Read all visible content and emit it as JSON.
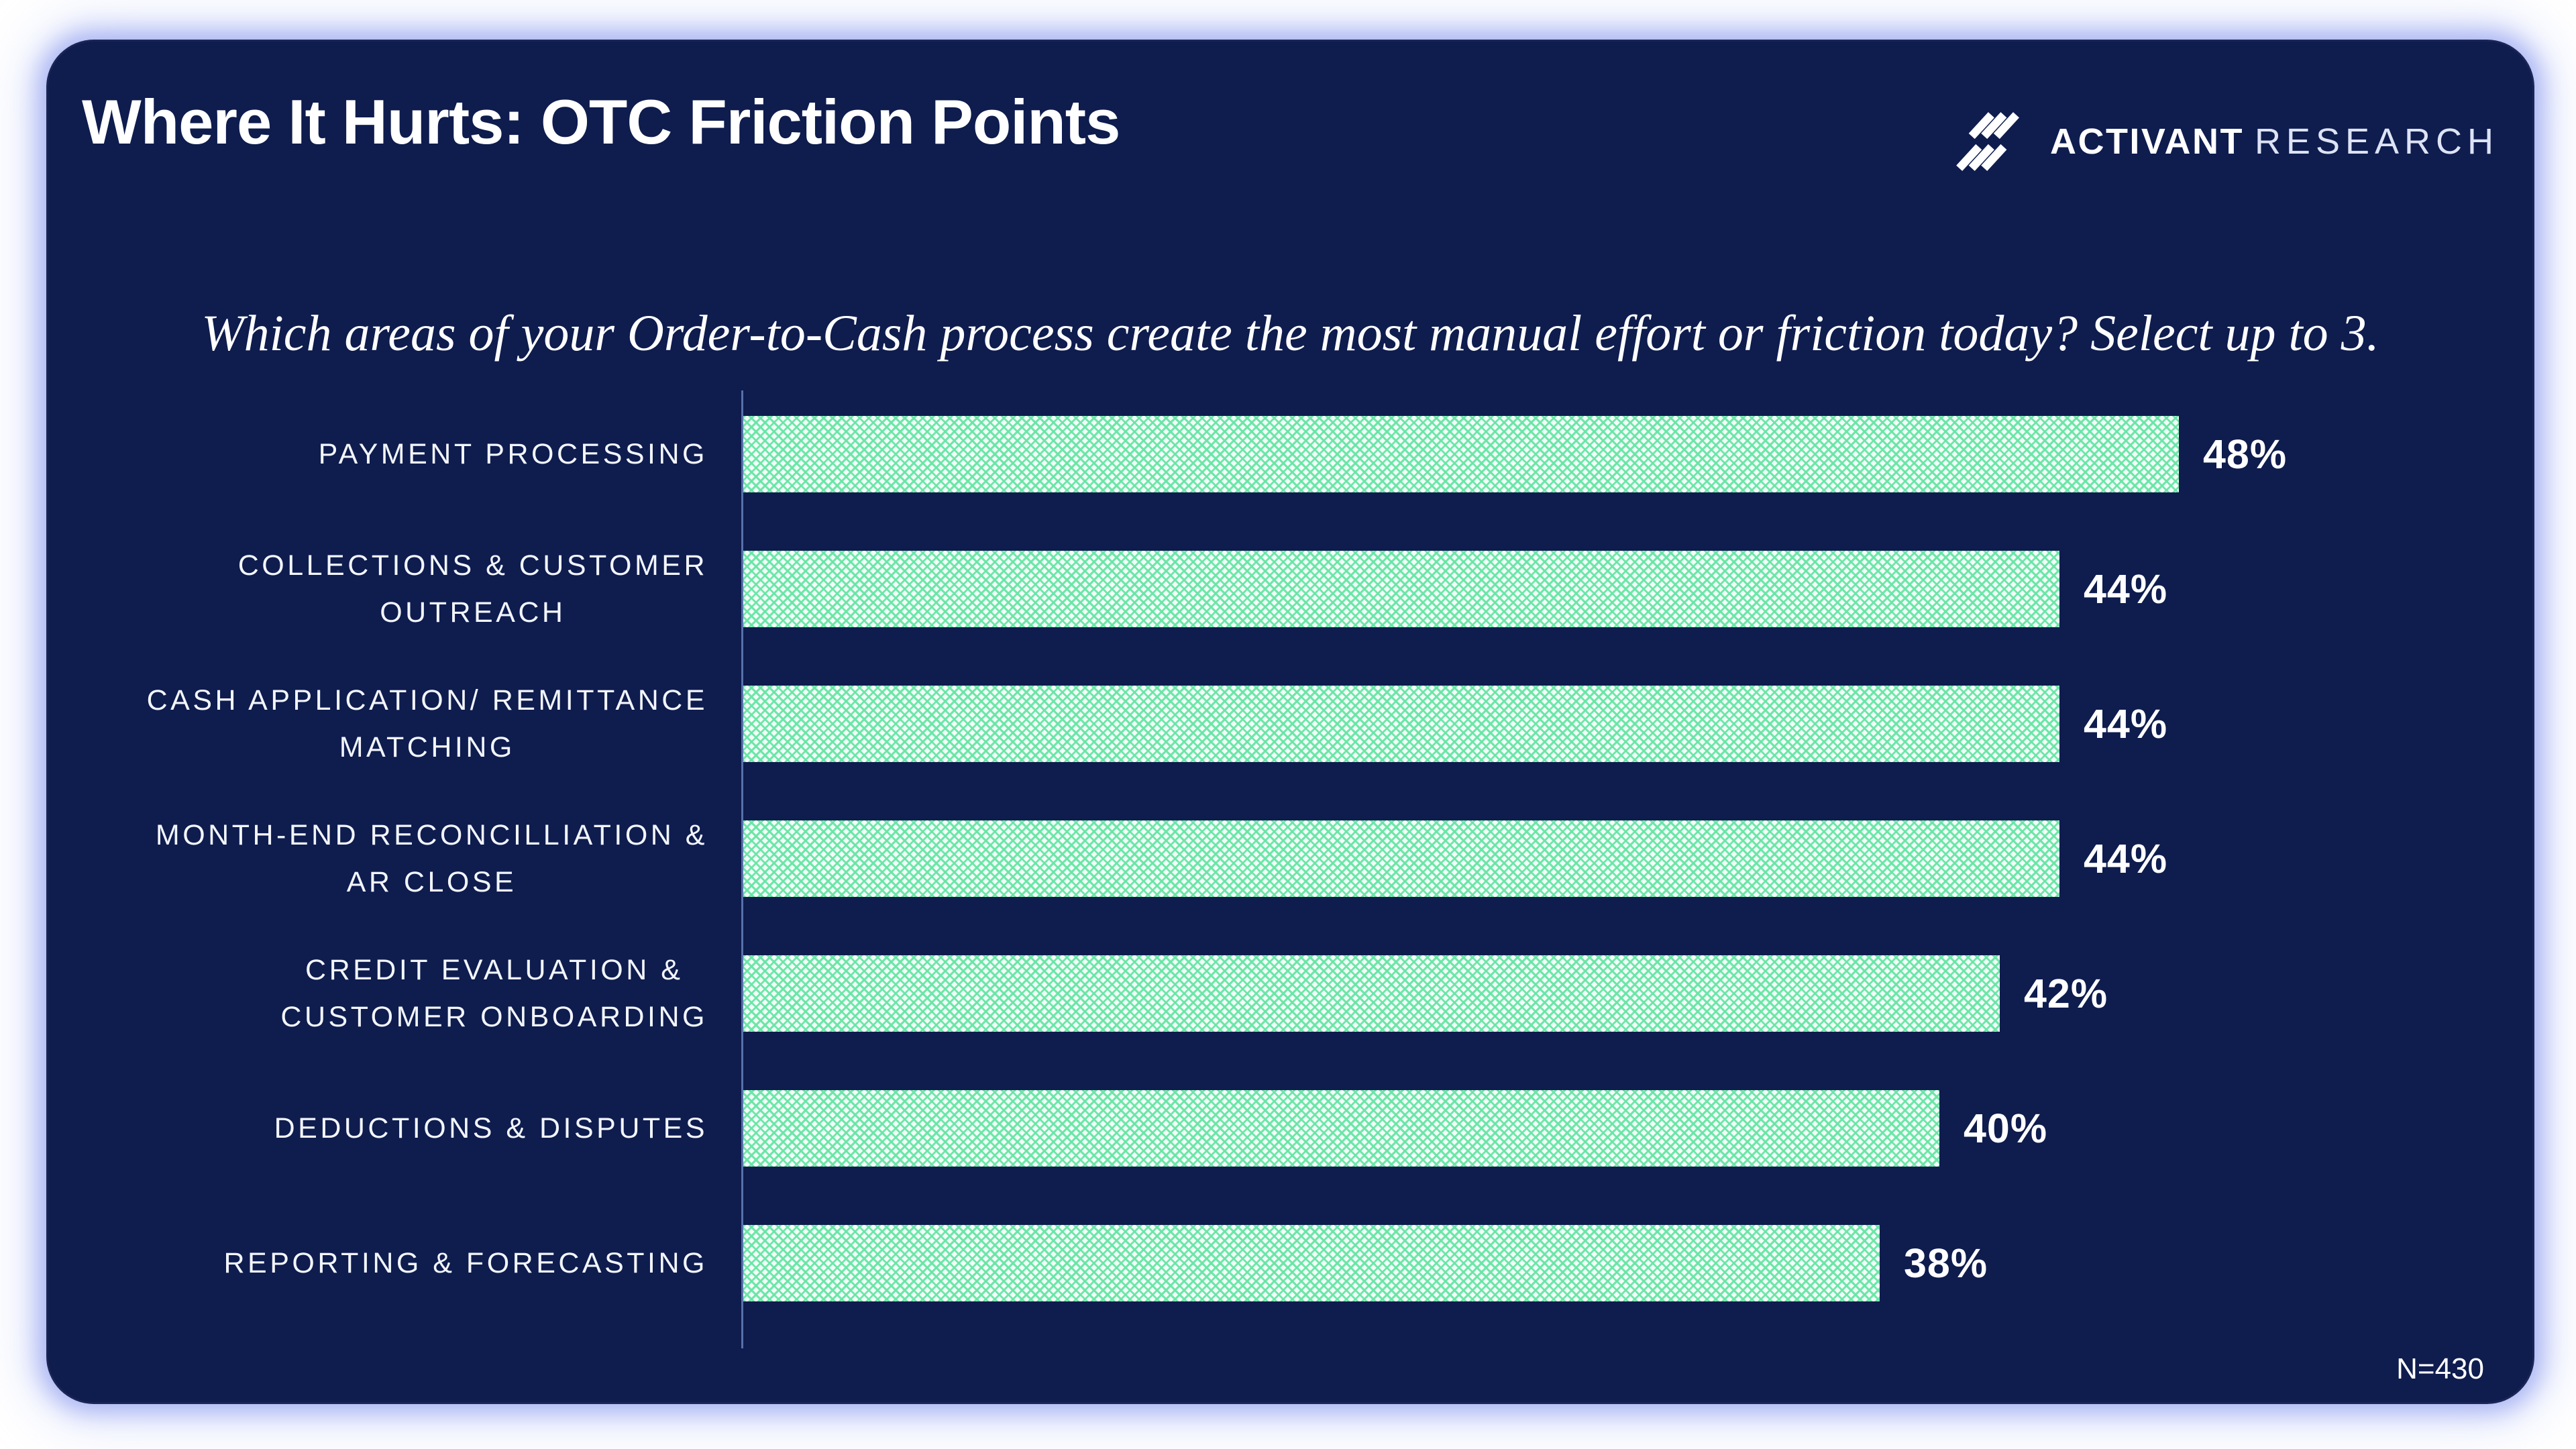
{
  "header": {
    "title": "Where It Hurts: OTC Friction Points",
    "logo": {
      "brand": "ACTIVANT",
      "suffix": "RESEARCH"
    }
  },
  "subtitle": "Which areas of your Order-to-Cash process create the most manual effort or friction today? Select up to 3.",
  "chart_data": {
    "type": "bar",
    "orientation": "horizontal",
    "title": "Where It Hurts: OTC Friction Points",
    "question": "Which areas of your Order-to-Cash process create the most manual effort or friction today? Select up to 3.",
    "categories": [
      "PAYMENT PROCESSING",
      "COLLECTIONS & CUSTOMER OUTREACH",
      "CASH APPLICATION/ REMITTANCE MATCHING",
      "MONTH-END RECONCILLIATION & AR CLOSE",
      "CREDIT EVALUATION & CUSTOMER ONBOARDING",
      "DEDUCTIONS & DISPUTES",
      "REPORTING & FORECASTING"
    ],
    "category_lines": [
      [
        "PAYMENT PROCESSING"
      ],
      [
        "COLLECTIONS & CUSTOMER",
        "OUTREACH"
      ],
      [
        "CASH APPLICATION/ REMITTANCE",
        "MATCHING"
      ],
      [
        "MONTH-END RECONCILLIATION &",
        "AR CLOSE"
      ],
      [
        "CREDIT EVALUATION &",
        "CUSTOMER ONBOARDING"
      ],
      [
        "DEDUCTIONS & DISPUTES"
      ],
      [
        "REPORTING & FORECASTING"
      ]
    ],
    "values": [
      48,
      44,
      44,
      44,
      42,
      40,
      38
    ],
    "value_suffix": "%",
    "value_labels": [
      "48%",
      "44%",
      "44%",
      "44%",
      "42%",
      "40%",
      "38%"
    ],
    "xlim": [
      0,
      50
    ],
    "grid": false,
    "legend": false,
    "annotation": "N=430",
    "colors": {
      "card_background": "#0e1c4e",
      "bar_base": "#f2fef7",
      "bar_pattern": "#68e5a6",
      "text": "#ffffff",
      "axis_line": "#7492d0",
      "glow": "#9aa8f0"
    }
  }
}
